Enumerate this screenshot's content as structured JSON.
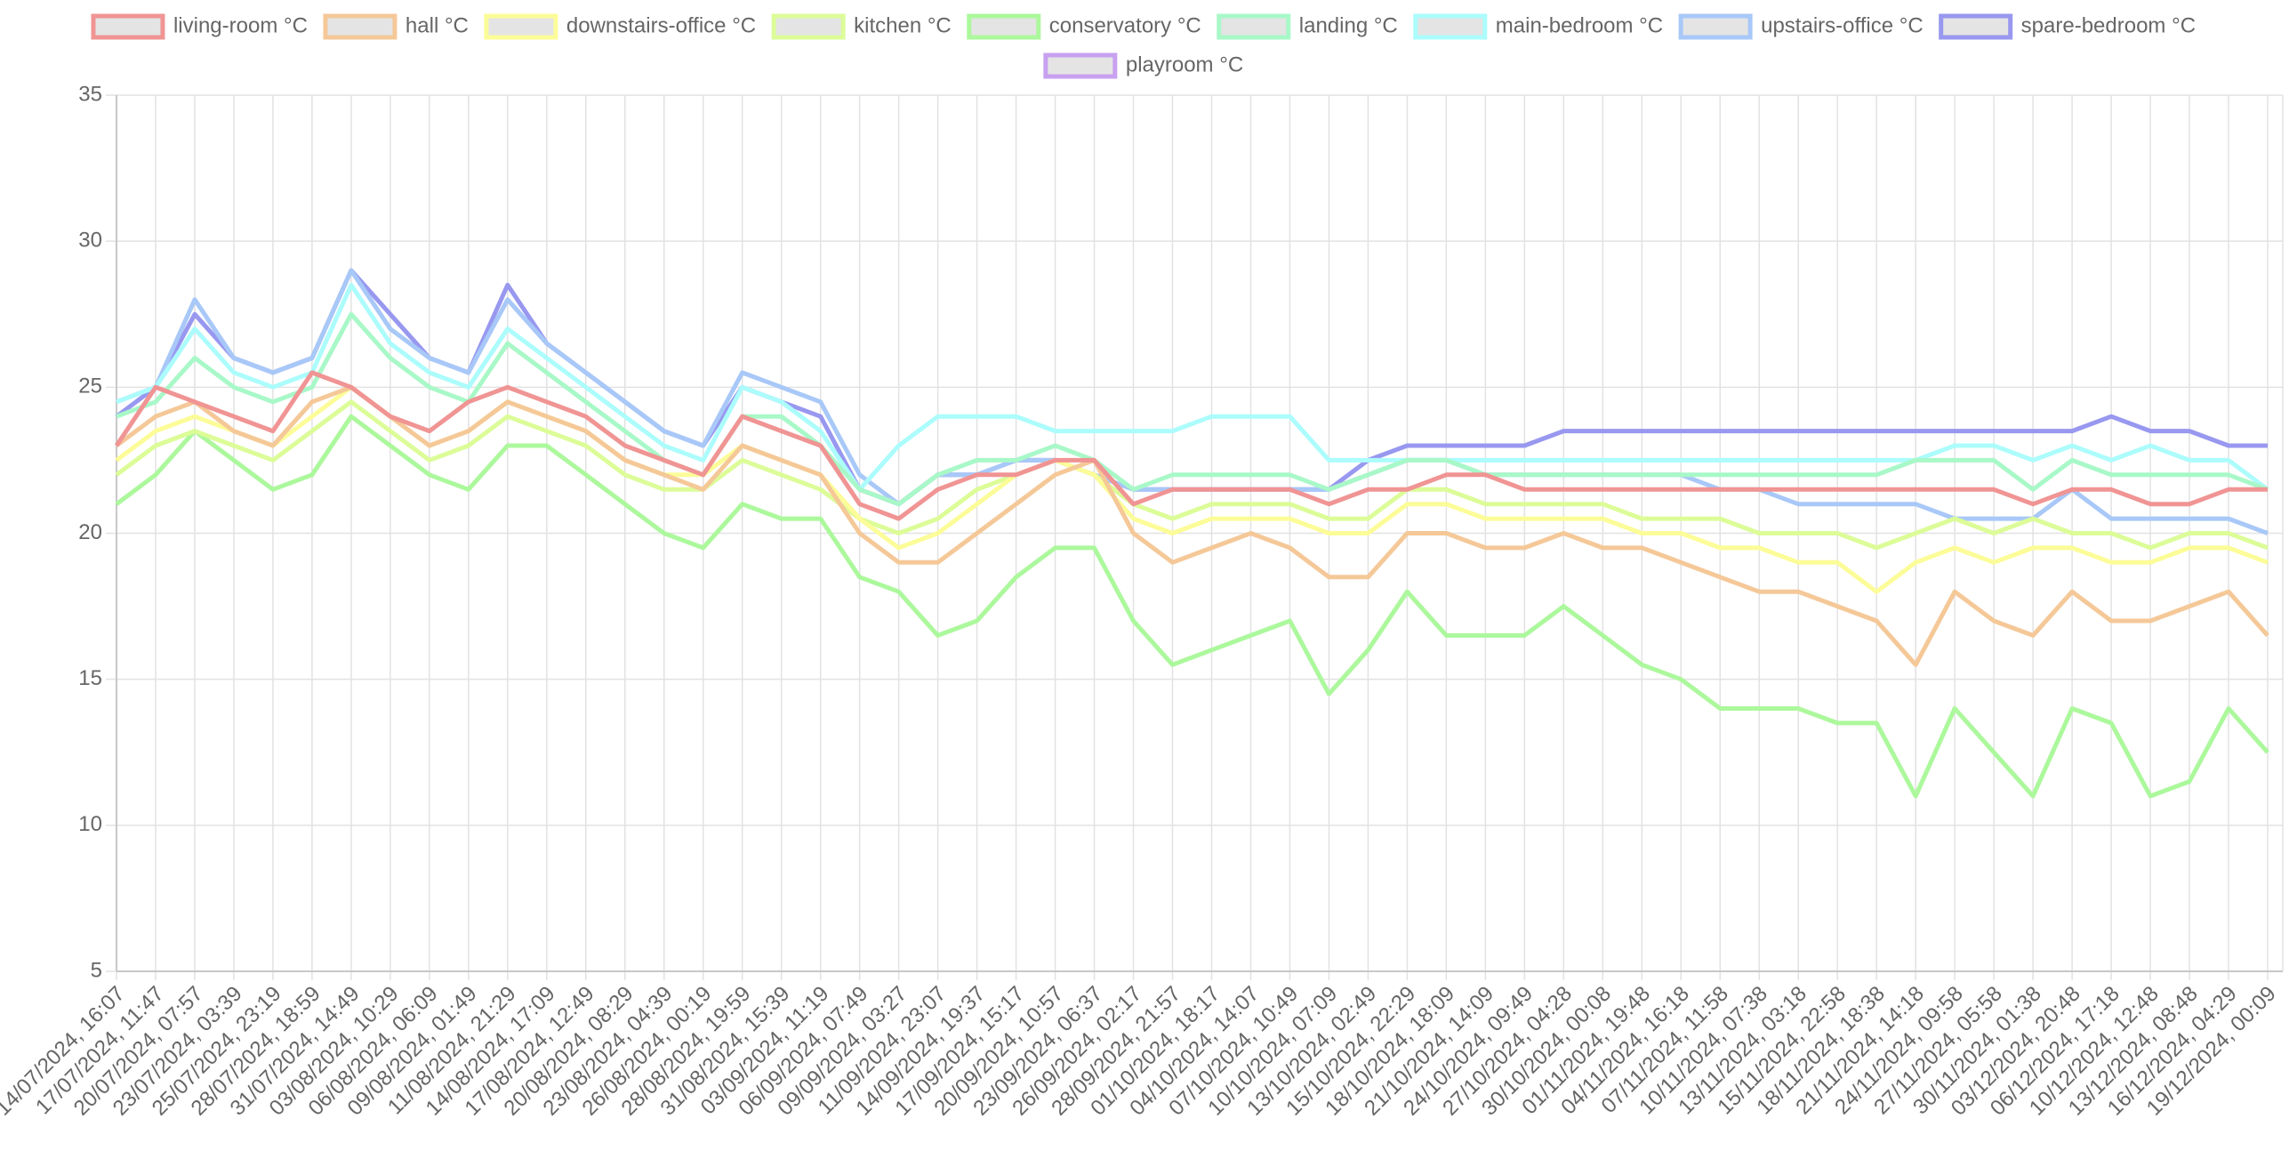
{
  "chart_data": {
    "type": "line",
    "categories": [
      "14/07/2024, 16:07",
      "17/07/2024, 11:47",
      "20/07/2024, 07:57",
      "23/07/2024, 03:39",
      "25/07/2024, 23:19",
      "28/07/2024, 18:59",
      "31/07/2024, 14:49",
      "03/08/2024, 10:29",
      "06/08/2024, 06:09",
      "09/08/2024, 01:49",
      "11/08/2024, 21:29",
      "14/08/2024, 17:09",
      "17/08/2024, 12:49",
      "20/08/2024, 08:29",
      "23/08/2024, 04:39",
      "26/08/2024, 00:19",
      "28/08/2024, 19:59",
      "31/08/2024, 15:39",
      "03/09/2024, 11:19",
      "06/09/2024, 07:49",
      "09/09/2024, 03:27",
      "11/09/2024, 23:07",
      "14/09/2024, 19:37",
      "17/09/2024, 15:17",
      "20/09/2024, 10:57",
      "23/09/2024, 06:37",
      "26/09/2024, 02:17",
      "28/09/2024, 21:57",
      "01/10/2024, 18:17",
      "04/10/2024, 14:07",
      "07/10/2024, 10:49",
      "10/10/2024, 07:09",
      "13/10/2024, 02:49",
      "15/10/2024, 22:29",
      "18/10/2024, 18:09",
      "21/10/2024, 14:09",
      "24/10/2024, 09:49",
      "27/10/2024, 04:28",
      "30/10/2024, 00:08",
      "01/11/2024, 19:48",
      "04/11/2024, 16:18",
      "07/11/2024, 11:58",
      "10/11/2024, 07:38",
      "13/11/2024, 03:18",
      "15/11/2024, 22:58",
      "18/11/2024, 18:38",
      "21/11/2024, 14:18",
      "24/11/2024, 09:58",
      "27/11/2024, 05:58",
      "30/11/2024, 01:38",
      "03/12/2024, 20:48",
      "06/12/2024, 17:18",
      "10/12/2024, 12:48",
      "13/12/2024, 08:48",
      "16/12/2024, 04:29",
      "19/12/2024, 00:09"
    ],
    "series": [
      {
        "name": "living-room °C",
        "color": "#f09494",
        "values": [
          23,
          25,
          24.5,
          24,
          23.5,
          25.5,
          25,
          24,
          23.5,
          24.5,
          25,
          24.5,
          24,
          23,
          22.5,
          22,
          24,
          23.5,
          23,
          21,
          20.5,
          21.5,
          22,
          22,
          22.5,
          22.5,
          21,
          21.5,
          21.5,
          21.5,
          21.5,
          21,
          21.5,
          21.5,
          22,
          22,
          21.5,
          21.5,
          21.5,
          21.5,
          21.5,
          21.5,
          21.5,
          21.5,
          21.5,
          21.5,
          21.5,
          21.5,
          21.5,
          21,
          21.5,
          21.5,
          21,
          21,
          21.5,
          21.5
        ]
      },
      {
        "name": "hall °C",
        "color": "#f5c898",
        "values": [
          23,
          24,
          24.5,
          23.5,
          23,
          24.5,
          25,
          24,
          23,
          23.5,
          24.5,
          24,
          23.5,
          22.5,
          22,
          21.5,
          23,
          22.5,
          22,
          20,
          19,
          19,
          20,
          21,
          22,
          22.5,
          20,
          19,
          19.5,
          20,
          19.5,
          18.5,
          18.5,
          20,
          20,
          19.5,
          19.5,
          20,
          19.5,
          19.5,
          19,
          18.5,
          18,
          18,
          17.5,
          17,
          15.5,
          18,
          17,
          16.5,
          18,
          17,
          17,
          17.5,
          18,
          16.5
        ]
      },
      {
        "name": "downstairs-office °C",
        "color": "#fcfc98",
        "values": [
          22.5,
          23.5,
          24,
          23.5,
          23,
          24,
          25,
          24,
          23,
          23.5,
          24.5,
          24,
          23.5,
          22.5,
          22,
          22,
          23,
          22.5,
          22,
          20.5,
          19.5,
          20,
          21,
          22,
          22.5,
          22,
          20.5,
          20,
          20.5,
          20.5,
          20.5,
          20,
          20,
          21,
          21,
          20.5,
          20.5,
          20.5,
          20.5,
          20,
          20,
          19.5,
          19.5,
          19,
          19,
          18,
          19,
          19.5,
          19,
          19.5,
          19.5,
          19,
          19,
          19.5,
          19.5,
          19
        ]
      },
      {
        "name": "kitchen °C",
        "color": "#dcfc98",
        "values": [
          22,
          23,
          23.5,
          23,
          22.5,
          23.5,
          24.5,
          23.5,
          22.5,
          23,
          24,
          23.5,
          23,
          22,
          21.5,
          21.5,
          22.5,
          22,
          21.5,
          20.5,
          20,
          20.5,
          21.5,
          22,
          22.5,
          22,
          21,
          20.5,
          21,
          21,
          21,
          20.5,
          20.5,
          21.5,
          21.5,
          21,
          21,
          21,
          21,
          20.5,
          20.5,
          20.5,
          20,
          20,
          20,
          19.5,
          20,
          20.5,
          20,
          20.5,
          20,
          20,
          19.5,
          20,
          20,
          19.5
        ]
      },
      {
        "name": "conservatory °C",
        "color": "#acf89c",
        "values": [
          21,
          22,
          23.5,
          22.5,
          21.5,
          22,
          24,
          23,
          22,
          21.5,
          23,
          23,
          22,
          21,
          20,
          19.5,
          21,
          20.5,
          20.5,
          18.5,
          18,
          16.5,
          17,
          18.5,
          19.5,
          19.5,
          17,
          15.5,
          16,
          16.5,
          17,
          14.5,
          16,
          18,
          16.5,
          16.5,
          16.5,
          17.5,
          16.5,
          15.5,
          15,
          14,
          14,
          14,
          13.5,
          13.5,
          11,
          14,
          12.5,
          11,
          14,
          13.5,
          11,
          11.5,
          14,
          12.5
        ]
      },
      {
        "name": "landing °C",
        "color": "#a8f8c8",
        "values": [
          24,
          24.5,
          26,
          25,
          24.5,
          25,
          27.5,
          26,
          25,
          24.5,
          26.5,
          25.5,
          24.5,
          23.5,
          22.5,
          22,
          24,
          24,
          23,
          21.5,
          21,
          22,
          22.5,
          22.5,
          23,
          22.5,
          21.5,
          22,
          22,
          22,
          22,
          21.5,
          22,
          22.5,
          22.5,
          22,
          22,
          22,
          22,
          22,
          22,
          22,
          22,
          22,
          22,
          22,
          22.5,
          22.5,
          22.5,
          21.5,
          22.5,
          22,
          22,
          22,
          22,
          21.5
        ]
      },
      {
        "name": "main-bedroom °C",
        "color": "#acfcfc",
        "values": [
          24.5,
          25,
          27,
          25.5,
          25,
          25.5,
          28.5,
          26.5,
          25.5,
          25,
          27,
          26,
          25,
          24,
          23,
          22.5,
          25,
          24.5,
          23.5,
          21.5,
          23,
          24,
          24,
          24,
          23.5,
          23.5,
          23.5,
          23.5,
          24,
          24,
          24,
          22.5,
          22.5,
          22.5,
          22.5,
          22.5,
          22.5,
          22.5,
          22.5,
          22.5,
          22.5,
          22.5,
          22.5,
          22.5,
          22.5,
          22.5,
          22.5,
          23,
          23,
          22.5,
          23,
          22.5,
          23,
          22.5,
          22.5,
          21.5
        ]
      },
      {
        "name": "upstairs-office °C",
        "color": "#a8c8f8",
        "values": [
          24.5,
          25,
          28,
          26,
          25.5,
          26,
          29,
          27,
          26,
          25.5,
          28,
          26.5,
          25.5,
          24.5,
          23.5,
          23,
          25.5,
          25,
          24.5,
          22,
          21,
          22,
          22,
          22.5,
          22.5,
          22,
          21.5,
          21.5,
          21.5,
          21.5,
          21.5,
          21.5,
          22,
          22.5,
          22.5,
          22,
          22,
          22,
          22,
          22,
          22,
          21.5,
          21.5,
          21,
          21,
          21,
          21,
          20.5,
          20.5,
          20.5,
          21.5,
          20.5,
          20.5,
          20.5,
          20.5,
          20
        ]
      },
      {
        "name": "spare-bedroom °C",
        "color": "#9898f0",
        "values": [
          24,
          25,
          27.5,
          26,
          25.5,
          26,
          29,
          27.5,
          26,
          25.5,
          28.5,
          26.5,
          25.5,
          24.5,
          23.5,
          23,
          25,
          24.5,
          24,
          21.5,
          21,
          22,
          22,
          22.5,
          22.5,
          22,
          21.5,
          21.5,
          21.5,
          21.5,
          21.5,
          21.5,
          22.5,
          23,
          23,
          23,
          23,
          23.5,
          23.5,
          23.5,
          23.5,
          23.5,
          23.5,
          23.5,
          23.5,
          23.5,
          23.5,
          23.5,
          23.5,
          23.5,
          23.5,
          24,
          23.5,
          23.5,
          23,
          23
        ]
      },
      {
        "name": "playroom °C",
        "color": "#c8a0f0",
        "values": [
          null,
          null,
          null,
          null,
          null,
          null,
          null,
          null,
          null,
          null,
          null,
          null,
          null,
          null,
          null,
          null,
          null,
          null,
          null,
          null,
          null,
          null,
          null,
          null,
          null,
          null,
          null,
          null,
          null,
          null,
          null,
          null,
          null,
          null,
          null,
          null,
          null,
          null,
          null,
          null,
          null,
          null,
          null,
          null,
          null,
          null,
          null,
          null,
          null,
          null,
          null,
          null,
          null,
          null,
          null,
          null
        ]
      }
    ],
    "ylim": [
      5,
      35
    ],
    "yticks": [
      5,
      10,
      15,
      20,
      25,
      30,
      35
    ],
    "grid": true,
    "legend": "top"
  }
}
